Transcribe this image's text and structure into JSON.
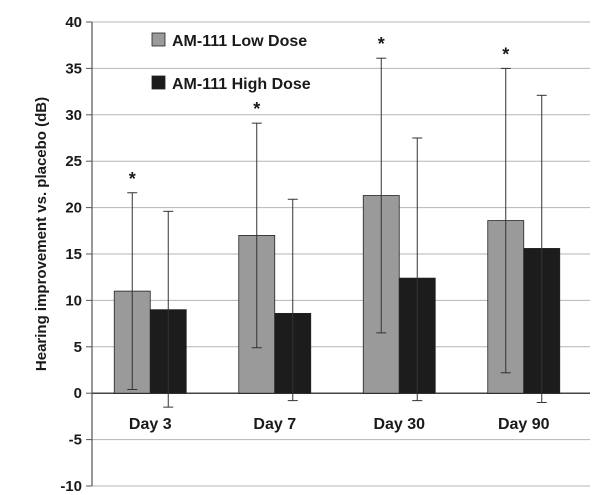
{
  "chart_data": {
    "type": "bar",
    "title": "",
    "xlabel": "",
    "ylabel": "Hearing improvement vs. placebo (dB)",
    "ylim": [
      -10,
      40
    ],
    "yticks": [
      -10,
      -5,
      0,
      5,
      10,
      15,
      20,
      25,
      30,
      35,
      40
    ],
    "grid": true,
    "legend_position": "top-left",
    "categories": [
      "Day 3",
      "Day 7",
      "Day 30",
      "Day 90"
    ],
    "series": [
      {
        "name": "AM-111 Low Dose",
        "color": "#9a9a9a",
        "values": [
          11.0,
          17.0,
          21.3,
          18.6
        ],
        "error_low": [
          0.4,
          4.9,
          6.5,
          2.2
        ],
        "error_high": [
          21.6,
          29.1,
          36.1,
          35.0
        ],
        "significance": [
          "*",
          "*",
          "*",
          "*"
        ]
      },
      {
        "name": "AM-111 High Dose",
        "color": "#1c1c1c",
        "values": [
          9.0,
          8.6,
          12.4,
          15.6
        ],
        "error_low": [
          -1.5,
          -0.8,
          -0.8,
          -1.0
        ],
        "error_high": [
          19.6,
          20.9,
          27.5,
          32.1
        ],
        "significance": [
          "",
          "",
          "",
          ""
        ]
      }
    ]
  }
}
